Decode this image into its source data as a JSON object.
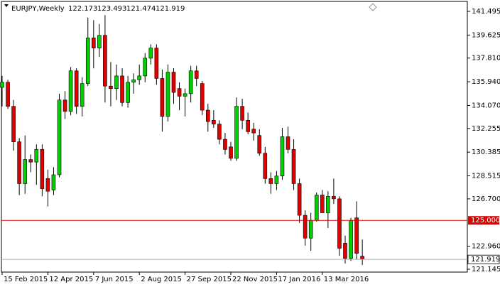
{
  "chart_data": {
    "type": "candlestick",
    "title": "EURJPY,Weekly",
    "categories": [
      "15 Feb 2015",
      null,
      null,
      null,
      null,
      null,
      null,
      null,
      "12 Apr 2015",
      null,
      null,
      null,
      null,
      null,
      null,
      null,
      "7 Jun 2015",
      null,
      null,
      null,
      null,
      null,
      null,
      null,
      "2 Aug 2015",
      null,
      null,
      null,
      null,
      null,
      null,
      null,
      "27 Sep 2015",
      null,
      null,
      null,
      null,
      null,
      null,
      null,
      "22 Nov 2015",
      null,
      null,
      null,
      null,
      null,
      null,
      null,
      "17 Jan 2016",
      null,
      null,
      null,
      null,
      null,
      null,
      null,
      "13 Mar 2016",
      null,
      null,
      null,
      null,
      null,
      null,
      null
    ],
    "open": [
      135.5,
      135.9,
      134.0,
      131.2,
      127.9,
      129.8,
      129.6,
      130.6,
      128.3,
      127.4,
      128.6,
      134.5,
      133.6,
      136.8,
      134.0,
      135.8,
      139.4,
      138.6,
      139.6,
      135.6,
      135.4,
      136.4,
      134.3,
      135.9,
      136.1,
      136.4,
      137.8,
      138.6,
      136.2,
      133.2,
      136.7,
      135.4,
      134.8,
      135.0,
      136.8,
      135.8,
      133.7,
      132.9,
      132.6,
      131.4,
      130.8,
      129.9,
      134.0,
      132.9,
      132.2,
      131.7,
      130.3,
      128.3,
      127.9,
      128.5,
      131.6,
      130.6,
      127.9,
      125.4,
      123.6,
      125.0,
      127.0,
      125.6,
      126.9,
      126.7,
      123.2,
      122.0,
      125.2,
      122.173
    ],
    "high": [
      136.4,
      136.1,
      134.5,
      131.5,
      131.7,
      130.2,
      131.0,
      131.0,
      129.0,
      129.2,
      135.0,
      135.2,
      137.1,
      137.0,
      136.3,
      141.0,
      140.8,
      140.5,
      141.2,
      137.5,
      137.3,
      137.0,
      136.4,
      136.6,
      137.3,
      138.2,
      138.9,
      138.9,
      136.9,
      137.3,
      137.0,
      135.9,
      135.4,
      137.2,
      137.2,
      136.0,
      134.2,
      133.7,
      132.9,
      131.9,
      131.2,
      134.7,
      134.6,
      133.5,
      132.7,
      132.2,
      130.8,
      128.8,
      128.9,
      132.3,
      132.4,
      131.4,
      128.3,
      125.8,
      125.6,
      127.2,
      127.4,
      127.3,
      128.3,
      126.9,
      123.8,
      125.2,
      126.5,
      123.493
    ],
    "low": [
      134.0,
      133.8,
      130.5,
      127.0,
      127.1,
      128.8,
      127.8,
      126.9,
      126.1,
      127.0,
      128.4,
      133.0,
      133.3,
      133.4,
      133.2,
      135.6,
      137.0,
      137.9,
      134.3,
      134.0,
      134.5,
      134.0,
      133.9,
      135.0,
      135.7,
      135.9,
      137.3,
      135.7,
      132.0,
      132.8,
      134.2,
      133.7,
      133.2,
      134.3,
      135.6,
      133.3,
      132.0,
      132.3,
      131.0,
      130.2,
      129.7,
      129.7,
      132.2,
      131.8,
      131.3,
      130.1,
      127.9,
      127.1,
      127.4,
      128.2,
      130.3,
      127.4,
      124.8,
      123.0,
      122.6,
      124.9,
      125.6,
      124.4,
      126.3,
      122.2,
      121.6,
      121.8,
      121.9,
      121.474
    ],
    "close": [
      135.9,
      134.0,
      131.2,
      127.9,
      129.8,
      129.6,
      130.6,
      127.5,
      127.3,
      128.6,
      134.5,
      133.6,
      136.8,
      134.0,
      135.8,
      139.4,
      138.6,
      139.6,
      135.6,
      135.4,
      136.4,
      134.3,
      135.9,
      136.1,
      136.4,
      137.8,
      138.6,
      136.2,
      133.2,
      136.7,
      135.1,
      134.8,
      135.0,
      136.8,
      136.2,
      133.7,
      132.8,
      132.6,
      131.4,
      130.6,
      129.9,
      134.0,
      132.9,
      132.0,
      131.9,
      130.3,
      128.3,
      127.9,
      128.5,
      131.6,
      130.6,
      127.9,
      125.4,
      123.6,
      125.0,
      127.0,
      125.6,
      126.9,
      126.7,
      122.8,
      122.0,
      125.0,
      122.4,
      121.919
    ],
    "up_color": "#00d000",
    "down_color": "#e00000",
    "ylim": [
      120.92,
      142.28
    ],
    "yticks": [
      141.495,
      139.625,
      {
        "value": 137.81,
        "label": "137.810"
      },
      {
        "value": 135.94,
        "label": "135.940"
      },
      {
        "value": 134.07,
        "label": "134.070"
      },
      132.255,
      130.385,
      128.515,
      {
        "value": 126.7,
        "label": "126.700"
      },
      {
        "value": 122.96,
        "label": "122.960"
      },
      121.145
    ],
    "hline": {
      "value": 125,
      "label": "125.000",
      "color": "#e00000"
    }
  }
}
